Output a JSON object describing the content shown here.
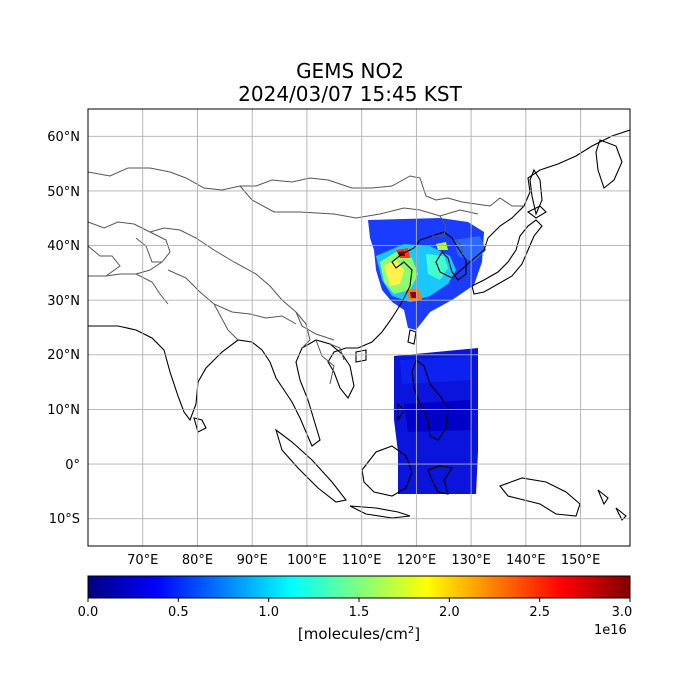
{
  "title": {
    "line1": "GEMS NO2",
    "line2": "2024/03/07 15:45 KST"
  },
  "map": {
    "lon_range": [
      61,
      160
    ],
    "lat_range": [
      -15,
      65
    ],
    "lat_ticks": [
      {
        "value": 60,
        "label": "60°N"
      },
      {
        "value": 50,
        "label": "50°N"
      },
      {
        "value": 40,
        "label": "40°N"
      },
      {
        "value": 30,
        "label": "30°N"
      },
      {
        "value": 20,
        "label": "20°N"
      },
      {
        "value": 10,
        "label": "10°N"
      },
      {
        "value": 0,
        "label": "0°"
      },
      {
        "value": -10,
        "label": "10°S"
      }
    ],
    "lon_ticks": [
      {
        "value": 70,
        "label": "70°E"
      },
      {
        "value": 80,
        "label": "80°E"
      },
      {
        "value": 90,
        "label": "90°E"
      },
      {
        "value": 100,
        "label": "100°E"
      },
      {
        "value": 110,
        "label": "110°E"
      },
      {
        "value": 120,
        "label": "120°E"
      },
      {
        "value": 130,
        "label": "130°E"
      },
      {
        "value": 140,
        "label": "140°E"
      },
      {
        "value": 150,
        "label": "150°E"
      }
    ],
    "grid": true,
    "coastline_color": "#000000",
    "border_color": "#555555"
  },
  "colorbar": {
    "colormap": "jet",
    "min": 0.0,
    "max": 3.0,
    "ticks": [
      "0.0",
      "0.5",
      "1.0",
      "1.5",
      "2.0",
      "2.5",
      "3.0"
    ],
    "unit_label": "[molecules/cm",
    "unit_sup": "2",
    "unit_close": "]",
    "exponent": "1e16"
  }
}
